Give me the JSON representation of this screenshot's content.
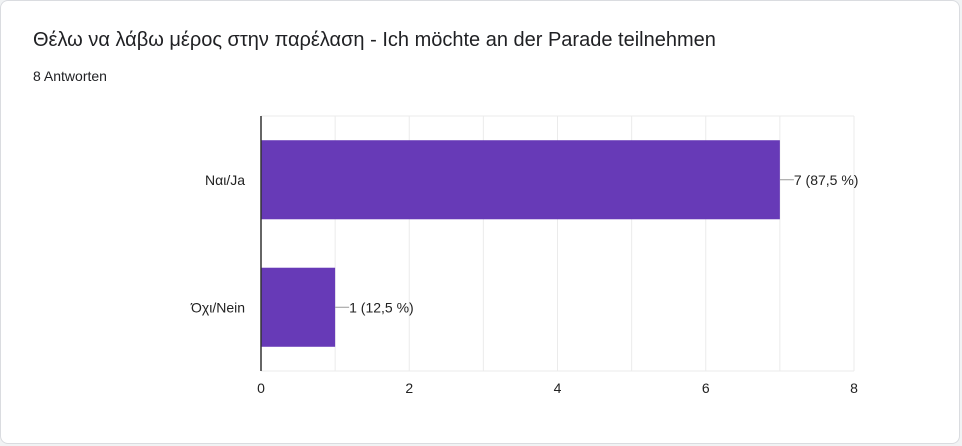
{
  "page": {
    "title": "Θέλω να λάβω μέρος στην παρέλαση - Ich möchte an der Parade teilnehmen",
    "response_count": "8 Antworten"
  },
  "colors": {
    "bar": "#673ab7",
    "grid": "#ebebeb",
    "axis": "#333333",
    "leader": "#999999"
  },
  "chart_data": {
    "type": "bar",
    "orientation": "horizontal",
    "categories": [
      "Ναι/Ja",
      "Όχι/Nein"
    ],
    "values": [
      7,
      1
    ],
    "data_labels": [
      "7 (87,5 %)",
      "1 (12,5 %)"
    ],
    "xlim": [
      0,
      8
    ],
    "xticks": [
      0,
      2,
      4,
      6,
      8
    ],
    "xtick_labels": [
      "0",
      "2",
      "4",
      "6",
      "8"
    ],
    "grid": true
  }
}
